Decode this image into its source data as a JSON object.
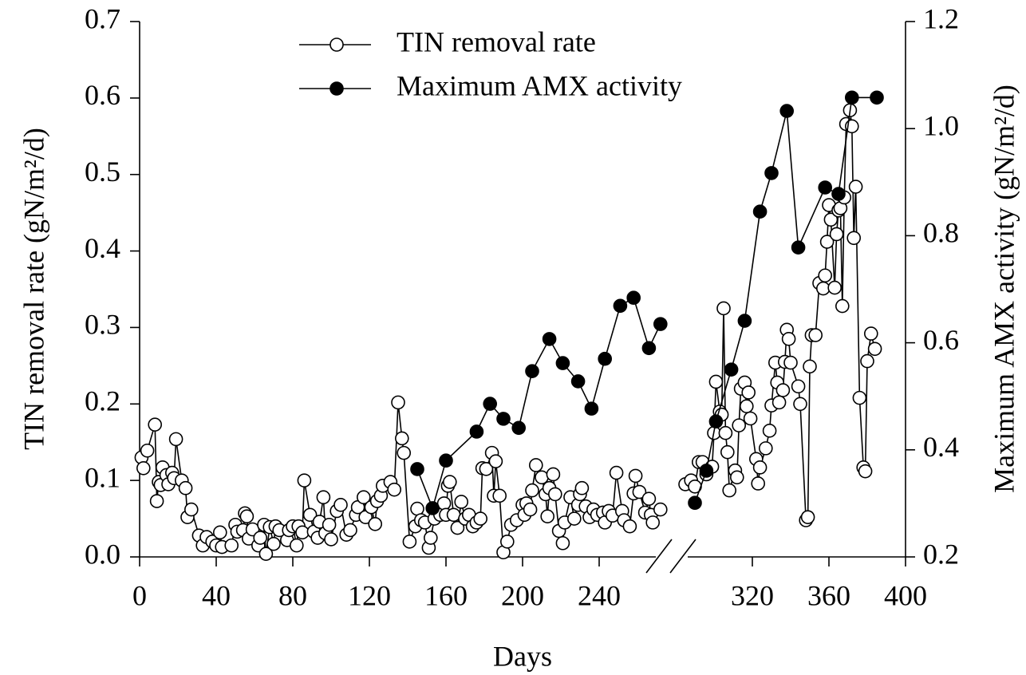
{
  "chart_data": {
    "type": "line",
    "x_label": "Days",
    "y_label": "TIN removal rate (gN/m²/d)",
    "y2_label": "Maximum AMX activity (gN/m²/d)",
    "xlim": [
      0,
      400
    ],
    "xticks": [
      0,
      40,
      80,
      120,
      160,
      200,
      240,
      320,
      360,
      400
    ],
    "ylim": [
      0,
      0.7
    ],
    "yticks": [
      {
        "value": 0,
        "label": "0.0"
      },
      0.1,
      0.2,
      0.3,
      0.4,
      0.5,
      0.6,
      0.7
    ],
    "y2lim": [
      0.2,
      1.2
    ],
    "y2ticks": [
      0.2,
      0.4,
      0.6,
      0.8,
      {
        "value": 1,
        "label": "1.0"
      },
      1.2
    ],
    "legend": "top",
    "series": [
      {
        "name": "TIN removal rate",
        "color": "#000000",
        "marker": "open",
        "axis": "y",
        "x": [
          1,
          2,
          4,
          8,
          9,
          10,
          11,
          12,
          14,
          15,
          17,
          18,
          19,
          22,
          24,
          25,
          27,
          31,
          33,
          35,
          38,
          40,
          42,
          43,
          48,
          50,
          51,
          54,
          55,
          56,
          57,
          59,
          62,
          63,
          65,
          66,
          68,
          70,
          71,
          73,
          77,
          78,
          80,
          82,
          83,
          85,
          86,
          89,
          91,
          93,
          94,
          96,
          97,
          99,
          100,
          103,
          105,
          108,
          110,
          113,
          114,
          117,
          118,
          121,
          123,
          124,
          126,
          127,
          131,
          133,
          135,
          137,
          138,
          141,
          144,
          145,
          147,
          149,
          151,
          152,
          154,
          157,
          159,
          160,
          161,
          162,
          164,
          166,
          168,
          170,
          172,
          174,
          176,
          178,
          179,
          181,
          184,
          185,
          186,
          188,
          190,
          192,
          194,
          197,
          200,
          201,
          202,
          204,
          205,
          207,
          210,
          212,
          213,
          214,
          216,
          217,
          219,
          221,
          222,
          225,
          227,
          229,
          230,
          231,
          233,
          235,
          237,
          239,
          242,
          243,
          245,
          247,
          249,
          252,
          253,
          256,
          258,
          259,
          261,
          264,
          266,
          267,
          268,
          272,
          null,
          285,
          288,
          290,
          292,
          294,
          296,
          299,
          300,
          301,
          303,
          304,
          305,
          306,
          307,
          308,
          311,
          312,
          313,
          314,
          316,
          317,
          318,
          319,
          322,
          323,
          324,
          327,
          329,
          330,
          332,
          333,
          334,
          336,
          337,
          338,
          339,
          340,
          344,
          345,
          348,
          349,
          350,
          351,
          353,
          355,
          357,
          358,
          359,
          360,
          361,
          363,
          364,
          365,
          366,
          367,
          368,
          369,
          371,
          372,
          373,
          374,
          376,
          378,
          379,
          380,
          382,
          384
        ],
        "values": [
          0.13,
          0.116,
          0.139,
          0.173,
          0.073,
          0.098,
          0.094,
          0.117,
          0.107,
          0.095,
          0.11,
          0.103,
          0.154,
          0.1,
          0.09,
          0.052,
          0.062,
          0.028,
          0.015,
          0.026,
          0.02,
          0.015,
          0.032,
          0.013,
          0.015,
          0.042,
          0.033,
          0.035,
          0.057,
          0.053,
          0.024,
          0.036,
          0.015,
          0.025,
          0.042,
          0.004,
          0.039,
          0.017,
          0.04,
          0.035,
          0.022,
          0.035,
          0.04,
          0.015,
          0.04,
          0.032,
          0.1,
          0.055,
          0.033,
          0.025,
          0.046,
          0.078,
          0.031,
          0.042,
          0.023,
          0.06,
          0.068,
          0.029,
          0.035,
          0.055,
          0.065,
          0.078,
          0.052,
          0.065,
          0.043,
          0.073,
          0.08,
          0.093,
          0.098,
          0.088,
          0.202,
          0.155,
          0.136,
          0.02,
          0.04,
          0.063,
          0.048,
          0.045,
          0.012,
          0.025,
          0.05,
          0.055,
          0.07,
          0.055,
          0.093,
          0.098,
          0.055,
          0.038,
          0.072,
          0.05,
          0.055,
          0.04,
          0.045,
          0.05,
          0.116,
          0.115,
          0.136,
          0.08,
          0.125,
          0.08,
          0.006,
          0.02,
          0.042,
          0.048,
          0.068,
          0.055,
          0.07,
          0.062,
          0.087,
          0.12,
          0.104,
          0.082,
          0.053,
          0.09,
          0.108,
          0.082,
          0.034,
          0.018,
          0.045,
          0.078,
          0.05,
          0.068,
          0.082,
          0.09,
          0.066,
          0.052,
          0.062,
          0.055,
          0.058,
          0.045,
          0.06,
          0.054,
          0.11,
          0.06,
          0.048,
          0.04,
          0.083,
          0.106,
          0.085,
          0.058,
          0.076,
          0.055,
          0.045,
          0.062,
          null,
          0.095,
          0.1,
          0.092,
          0.124,
          0.124,
          0.108,
          0.118,
          0.162,
          0.229,
          0.19,
          0.186,
          0.325,
          0.162,
          0.137,
          0.087,
          0.113,
          0.104,
          0.172,
          0.22,
          0.228,
          0.197,
          0.215,
          0.181,
          0.128,
          0.096,
          0.117,
          0.142,
          0.165,
          0.198,
          0.254,
          0.228,
          0.202,
          0.218,
          0.255,
          0.297,
          0.285,
          0.254,
          0.223,
          0.2,
          0.048,
          0.052,
          0.249,
          0.29,
          0.29,
          0.358,
          0.351,
          0.368,
          0.412,
          0.46,
          0.441,
          0.352,
          0.422,
          0.453,
          0.456,
          0.328,
          0.47,
          0.566,
          0.584,
          0.563,
          0.417,
          0.484,
          0.208,
          0.117,
          0.112,
          0.256,
          0.292,
          0.272
        ]
      },
      {
        "name": "Maximum AMX activity",
        "color": "#000000",
        "marker": "filled",
        "axis": "y2",
        "x": [
          145,
          153,
          160,
          176,
          183,
          190,
          198,
          205,
          214,
          221,
          229,
          236,
          243,
          251,
          258,
          266,
          272,
          null,
          290,
          296,
          301,
          309,
          316,
          324,
          330,
          338,
          344,
          358,
          365,
          372,
          385
        ],
        "values": [
          0.364,
          0.291,
          0.38,
          0.434,
          0.486,
          0.458,
          0.441,
          0.547,
          0.607,
          0.562,
          0.528,
          0.477,
          0.57,
          0.669,
          0.684,
          0.59,
          0.635,
          null,
          0.301,
          0.361,
          0.453,
          0.55,
          0.641,
          0.845,
          0.917,
          1.033,
          0.778,
          0.89,
          0.878,
          1.058,
          1.058
        ]
      }
    ]
  }
}
